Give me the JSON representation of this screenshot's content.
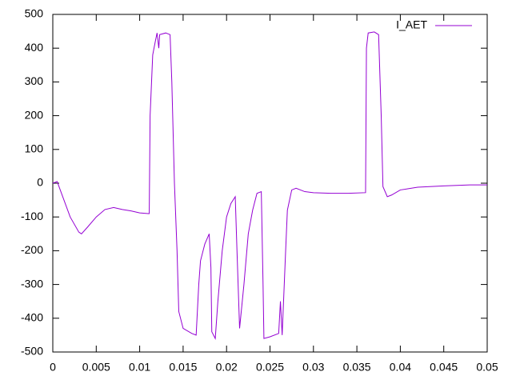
{
  "chart_data": {
    "type": "line",
    "x": [
      0,
      0.0005,
      0.001,
      0.002,
      0.003,
      0.0033,
      0.004,
      0.005,
      0.006,
      0.007,
      0.008,
      0.009,
      0.01,
      0.011,
      0.0111,
      0.0112,
      0.0115,
      0.0118,
      0.012,
      0.0122,
      0.0123,
      0.013,
      0.0135,
      0.0137,
      0.014,
      0.0143,
      0.0145,
      0.015,
      0.016,
      0.0165,
      0.0168,
      0.017,
      0.0175,
      0.018,
      0.0182,
      0.0183,
      0.0187,
      0.019,
      0.0195,
      0.02,
      0.0205,
      0.021,
      0.0212,
      0.0215,
      0.022,
      0.0225,
      0.023,
      0.0235,
      0.024,
      0.0242,
      0.0243,
      0.025,
      0.026,
      0.0262,
      0.0264,
      0.0268,
      0.027,
      0.0275,
      0.028,
      0.029,
      0.03,
      0.032,
      0.034,
      0.036,
      0.0361,
      0.0363,
      0.037,
      0.0375,
      0.0378,
      0.038,
      0.0385,
      0.039,
      0.04,
      0.042,
      0.045,
      0.048,
      0.05
    ],
    "series": [
      {
        "name": "I_AET",
        "color": "#9400d3",
        "values": [
          0,
          5,
          -30,
          -100,
          -145,
          -150,
          -130,
          -100,
          -78,
          -72,
          -78,
          -82,
          -88,
          -90,
          -90,
          200,
          380,
          420,
          445,
          400,
          440,
          445,
          440,
          300,
          0,
          -200,
          -380,
          -430,
          -445,
          -450,
          -300,
          -230,
          -180,
          -150,
          -250,
          -440,
          -460,
          -350,
          -200,
          -100,
          -60,
          -40,
          -200,
          -430,
          -300,
          -150,
          -80,
          -30,
          -25,
          -300,
          -460,
          -455,
          -445,
          -350,
          -450,
          -200,
          -80,
          -20,
          -15,
          -25,
          -28,
          -30,
          -30,
          -28,
          400,
          445,
          448,
          440,
          200,
          -10,
          -40,
          -35,
          -20,
          -12,
          -8,
          -5,
          -5
        ]
      }
    ],
    "xlim": [
      0,
      0.05
    ],
    "xticks": [
      0,
      0.005,
      0.01,
      0.015,
      0.02,
      0.025,
      0.03,
      0.035,
      0.04,
      0.045,
      0.05
    ],
    "ylim": [
      -500,
      500
    ],
    "yticks": [
      -500,
      -400,
      -300,
      -200,
      -100,
      0,
      100,
      200,
      300,
      400,
      500
    ],
    "legend": "top-right"
  }
}
